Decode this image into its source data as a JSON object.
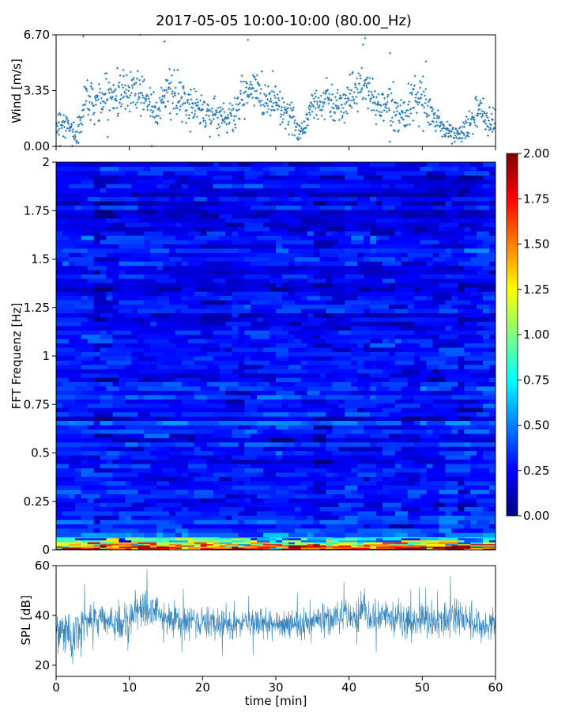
{
  "title": "2017-05-05 10:00-10:00 (80.00_Hz)",
  "colors": {
    "series": "#1f77b4",
    "colormap": [
      "#00007f",
      "#0000ff",
      "#007fff",
      "#00ffff",
      "#7fff7f",
      "#ffff00",
      "#ff7f00",
      "#ff0000",
      "#7f0000"
    ]
  },
  "chart_data": [
    {
      "id": "wind",
      "type": "scatter",
      "ylabel": "Wind [m/s]",
      "xlabel": "",
      "xlim": [
        0,
        60
      ],
      "ylim": [
        0,
        6.7
      ],
      "yticks": [
        "0.00",
        "3.35",
        "6.70"
      ],
      "ytick_values": [
        0,
        3.35,
        6.7
      ],
      "x_ticklabels_shown": false,
      "marker": "small plus",
      "envelope": {
        "x": [
          0,
          1,
          2,
          3,
          4,
          5,
          6,
          7,
          8,
          9,
          10,
          11,
          12,
          13,
          14,
          15,
          16,
          17,
          18,
          19,
          20,
          21,
          22,
          23,
          24,
          25,
          26,
          27,
          28,
          29,
          30,
          31,
          32,
          33,
          34,
          35,
          36,
          37,
          38,
          39,
          40,
          41,
          42,
          43,
          44,
          45,
          46,
          47,
          48,
          49,
          50,
          51,
          52,
          53,
          54,
          55,
          56,
          57,
          58,
          59,
          60
        ],
        "median": [
          1.2,
          1.5,
          1.0,
          0.6,
          3.0,
          2.7,
          2.8,
          3.0,
          3.1,
          3.2,
          3.4,
          3.5,
          3.1,
          2.5,
          2.3,
          3.5,
          3.0,
          2.7,
          2.4,
          2.5,
          2.2,
          1.9,
          1.9,
          1.8,
          1.7,
          2.5,
          3.2,
          3.4,
          3.0,
          2.8,
          2.9,
          2.2,
          1.8,
          1.0,
          1.2,
          2.6,
          2.5,
          3.0,
          2.4,
          2.6,
          3.0,
          3.3,
          3.8,
          3.0,
          2.4,
          2.6,
          2.3,
          2.0,
          2.2,
          2.6,
          2.8,
          2.0,
          1.6,
          1.0,
          0.8,
          0.7,
          1.0,
          1.8,
          2.0,
          1.6,
          1.4
        ],
        "spread": [
          0.6,
          0.7,
          0.6,
          0.5,
          0.9,
          0.8,
          0.8,
          0.8,
          0.9,
          0.9,
          0.9,
          1.0,
          0.9,
          0.8,
          0.8,
          0.9,
          0.9,
          0.8,
          0.8,
          0.7,
          0.7,
          0.7,
          0.7,
          0.7,
          0.6,
          0.8,
          0.9,
          0.9,
          0.8,
          0.8,
          0.8,
          0.7,
          0.6,
          0.5,
          0.5,
          0.7,
          0.7,
          0.8,
          0.7,
          0.7,
          0.8,
          0.9,
          1.0,
          0.8,
          0.7,
          0.8,
          0.7,
          0.6,
          0.7,
          0.7,
          0.8,
          0.7,
          0.6,
          0.4,
          0.4,
          0.4,
          0.5,
          0.6,
          0.6,
          0.6,
          0.6
        ],
        "peaks_x": [
          3.7,
          11.5,
          14.8,
          26.2,
          42.2,
          45.6,
          50.5
        ],
        "peaks_y": [
          6.6,
          6.7,
          6.3,
          6.4,
          6.5,
          5.6,
          5.1
        ]
      }
    },
    {
      "id": "spectrogram",
      "type": "heatmap",
      "ylabel": "FFT Frequenz [Hz]",
      "xlabel": "",
      "xlim": [
        0,
        60
      ],
      "ylim": [
        0,
        2
      ],
      "yticks": [
        "0",
        "0.25",
        "0.5",
        "0.75",
        "1",
        "1.25",
        "1.5",
        "1.75",
        "2"
      ],
      "ytick_values": [
        0,
        0.25,
        0.5,
        0.75,
        1,
        1.25,
        1.5,
        1.75,
        2
      ],
      "colorbar": {
        "range": [
          0,
          2
        ],
        "ticks": [
          "0.00",
          "0.25",
          "0.50",
          "0.75",
          "1.00",
          "1.25",
          "1.50",
          "1.75",
          "2.00"
        ],
        "tick_values": [
          0,
          0.25,
          0.5,
          0.75,
          1,
          1.25,
          1.5,
          1.75,
          2
        ]
      },
      "frequency_profile": {
        "freq": [
          0,
          0.02,
          0.04,
          0.06,
          0.08,
          0.1,
          0.15,
          0.2,
          0.3,
          0.5,
          0.8,
          1.2,
          1.6,
          2.0
        ],
        "typical_value": [
          1.9,
          1.5,
          0.9,
          0.6,
          0.45,
          0.4,
          0.36,
          0.33,
          0.3,
          0.27,
          0.26,
          0.25,
          0.24,
          0.23
        ]
      }
    },
    {
      "id": "spl",
      "type": "line",
      "ylabel": "SPL [dB]",
      "xlabel": "time [min]",
      "xlim": [
        0,
        60
      ],
      "ylim": [
        15.5,
        60
      ],
      "yticks": [
        "20",
        "40",
        "60"
      ],
      "ytick_values": [
        20,
        40,
        60
      ],
      "xticks": [
        "0",
        "10",
        "20",
        "30",
        "40",
        "50",
        "60"
      ],
      "xtick_values": [
        0,
        10,
        20,
        30,
        40,
        50,
        60
      ],
      "envelope": {
        "x": [
          0,
          1,
          2,
          3,
          4,
          5,
          6,
          7,
          8,
          9,
          10,
          11,
          12,
          13,
          14,
          15,
          16,
          17,
          18,
          19,
          20,
          21,
          22,
          23,
          24,
          25,
          26,
          27,
          28,
          29,
          30,
          31,
          32,
          33,
          34,
          35,
          36,
          37,
          38,
          39,
          40,
          41,
          42,
          43,
          44,
          45,
          46,
          47,
          48,
          49,
          50,
          51,
          52,
          53,
          54,
          55,
          56,
          57,
          58,
          59,
          60
        ],
        "median": [
          34,
          33,
          31,
          34,
          37,
          39,
          38,
          37,
          38,
          37,
          39,
          41,
          43,
          42,
          40,
          40,
          39,
          38,
          38,
          37,
          37,
          37,
          36,
          37,
          37,
          38,
          37,
          37,
          36,
          36,
          36,
          35,
          36,
          36,
          36,
          37,
          38,
          38,
          39,
          41,
          40,
          40,
          41,
          38,
          38,
          40,
          39,
          37,
          37,
          38,
          39,
          38,
          37,
          38,
          41,
          40,
          38,
          37,
          36,
          36,
          37
        ],
        "spread": [
          4,
          5,
          6,
          5,
          5,
          4,
          4,
          4,
          4,
          4,
          4,
          4,
          5,
          5,
          4,
          4,
          4,
          4,
          4,
          4,
          4,
          4,
          4,
          4,
          4,
          4,
          4,
          4,
          4,
          4,
          4,
          4,
          4,
          4,
          4,
          4,
          4,
          4,
          4,
          4,
          4,
          5,
          5,
          4,
          4,
          4,
          4,
          4,
          4,
          4,
          4,
          4,
          4,
          4,
          5,
          5,
          4,
          4,
          4,
          4,
          4
        ]
      }
    }
  ]
}
